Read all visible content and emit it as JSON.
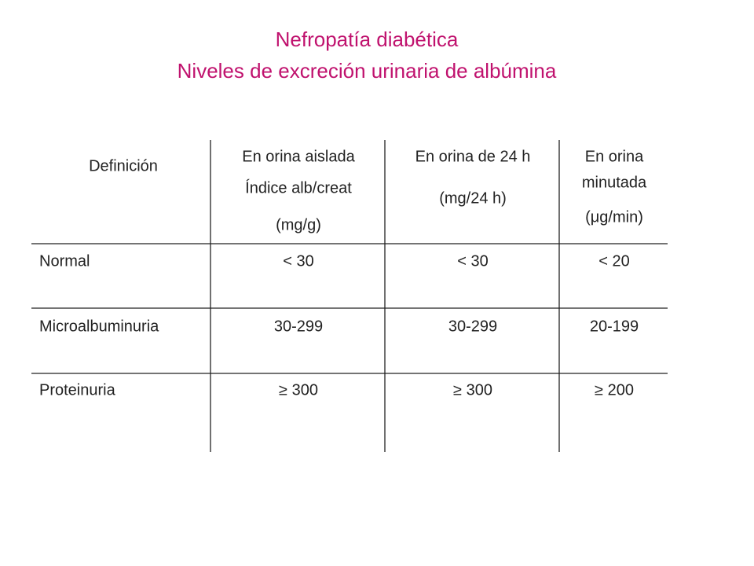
{
  "title": {
    "line1": "Nefropatía diabética",
    "line2": "Niveles de excreción urinaria de albúmina"
  },
  "table": {
    "header": [
      [
        "Definición"
      ],
      [
        "En orina aislada",
        "Índice alb/creat",
        "(mg/g)"
      ],
      [
        "En orina de 24 h",
        "(mg/24 h)"
      ],
      [
        "En orina",
        "minutada",
        "(μg/min)"
      ]
    ],
    "rows": [
      [
        "Normal",
        "< 30",
        "< 30",
        "< 20"
      ],
      [
        "Microalbuminuria",
        "30-299",
        "30-299",
        "20-199"
      ],
      [
        "Proteinuria",
        "≥ 300",
        "≥ 300",
        "≥ 200"
      ]
    ]
  }
}
